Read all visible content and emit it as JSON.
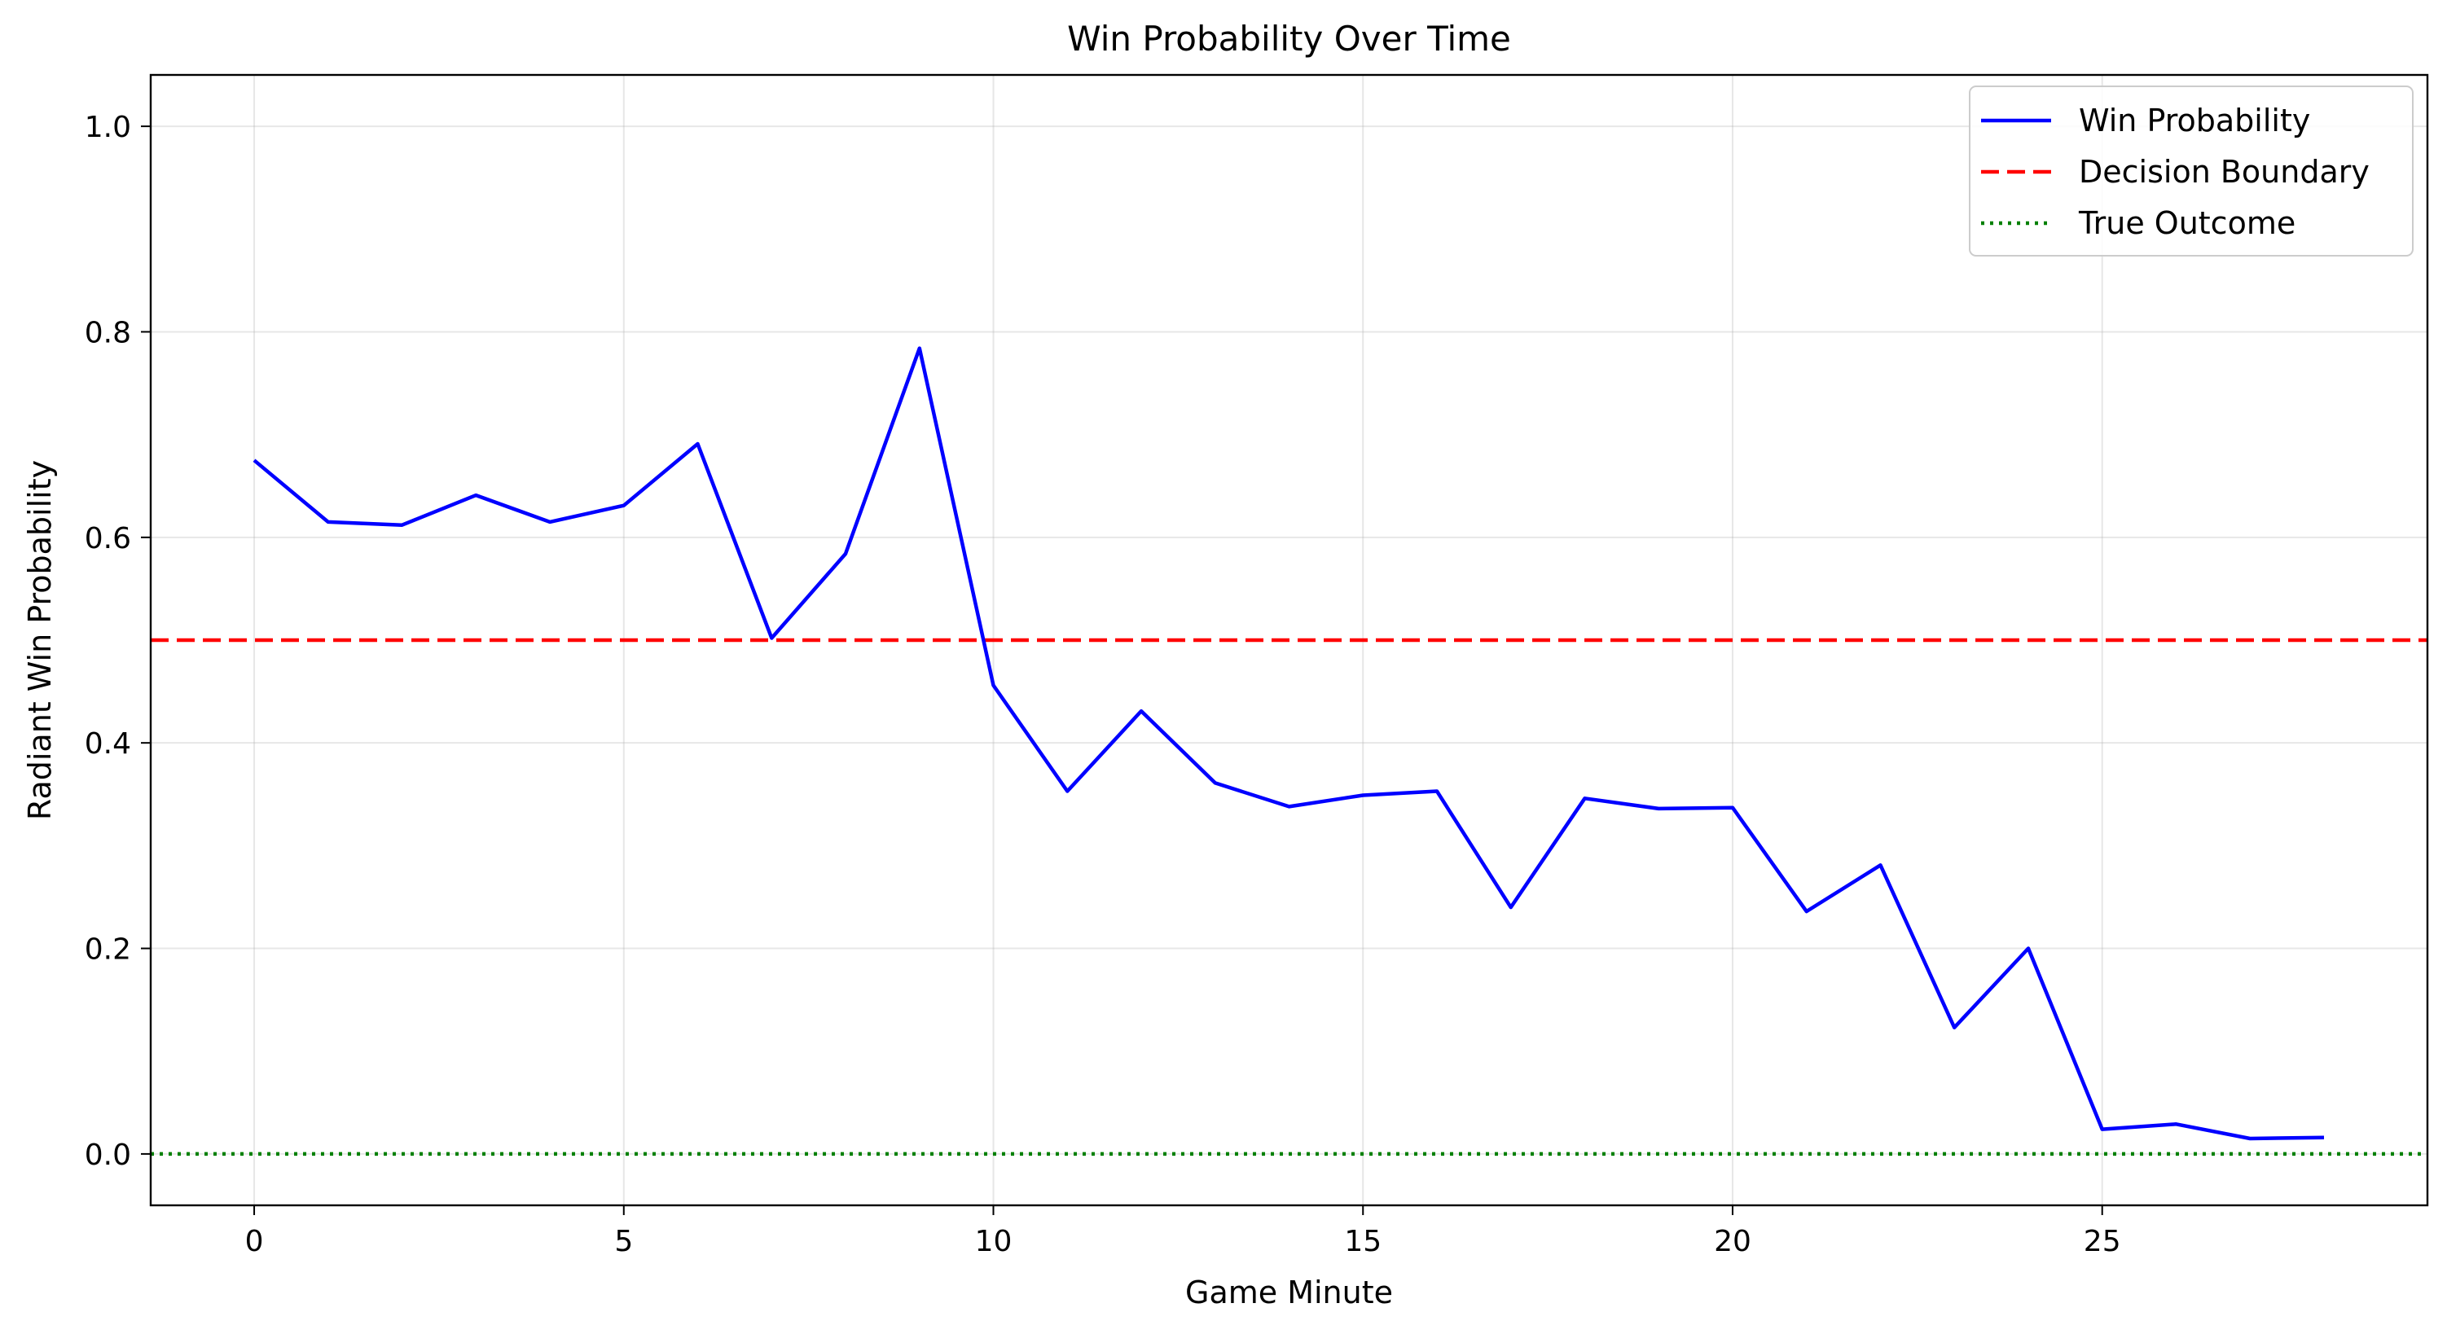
{
  "chart_data": {
    "type": "line",
    "title": "Win Probability Over Time",
    "xlabel": "Game Minute",
    "ylabel": "Radiant Win Probability",
    "xlim": [
      -1.4,
      29.4
    ],
    "ylim": [
      -0.05,
      1.05
    ],
    "xticks": [
      0,
      5,
      10,
      15,
      20,
      25
    ],
    "yticks": [
      0.0,
      0.2,
      0.4,
      0.6,
      0.8,
      1.0
    ],
    "xtick_labels": [
      "0",
      "5",
      "10",
      "15",
      "20",
      "25"
    ],
    "ytick_labels": [
      "0.0",
      "0.2",
      "0.4",
      "0.6",
      "0.8",
      "1.0"
    ],
    "grid": true,
    "legend_position": "top-right",
    "series": [
      {
        "name": "Win Probability",
        "color": "#0000ff",
        "style": "solid",
        "x": [
          0,
          1,
          2,
          3,
          4,
          5,
          6,
          7,
          8,
          9,
          10,
          11,
          12,
          13,
          14,
          15,
          16,
          17,
          18,
          19,
          20,
          21,
          22,
          23,
          24,
          25,
          26,
          27,
          28
        ],
        "values": [
          0.675,
          0.615,
          0.612,
          0.641,
          0.615,
          0.631,
          0.691,
          0.502,
          0.584,
          0.784,
          0.456,
          0.353,
          0.431,
          0.361,
          0.338,
          0.349,
          0.353,
          0.24,
          0.346,
          0.336,
          0.337,
          0.236,
          0.281,
          0.123,
          0.2,
          0.024,
          0.029,
          0.015,
          0.016
        ]
      }
    ],
    "reference_lines": [
      {
        "name": "Decision Boundary",
        "color": "#ff0000",
        "style": "dashed",
        "y": 0.5
      },
      {
        "name": "True Outcome",
        "color": "#008000",
        "style": "dotted",
        "y": 0.0
      }
    ]
  }
}
